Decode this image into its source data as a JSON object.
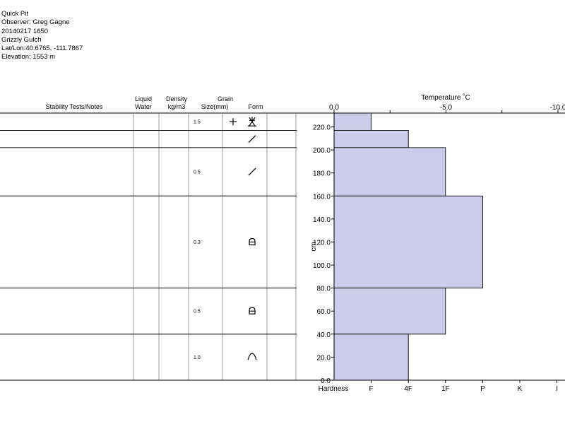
{
  "header": {
    "lines": [
      "Quick Pit",
      "Observer: Greg Gagne",
      "20140217 1650",
      "Grizzly Gulch",
      "Lat/Lon:40.6765, -111.7867",
      "Elevation: 1553 m"
    ]
  },
  "table": {
    "col_stability": "Stability Tests/Notes",
    "col_liquid_1": "Liquid",
    "col_liquid_2": "Water",
    "col_density_1": "Density",
    "col_density_2": "kg/m3",
    "col_grain_1": "Grain",
    "col_grain_2": "Size(mm)",
    "col_form": "Form",
    "layers": [
      {
        "top": 232,
        "bottom": 217,
        "grain_size": "1.5",
        "form": [
          "plus",
          "surface-hoar"
        ]
      },
      {
        "top": 217,
        "bottom": 202,
        "grain_size": "",
        "form": [
          "slash"
        ]
      },
      {
        "top": 202,
        "bottom": 160,
        "grain_size": "0.5",
        "form": [
          "slash"
        ]
      },
      {
        "top": 160,
        "bottom": 80,
        "grain_size": "0.3",
        "form": [
          "facet"
        ]
      },
      {
        "top": 80,
        "bottom": 40,
        "grain_size": "0.5",
        "form": [
          "facet"
        ]
      },
      {
        "top": 40,
        "bottom": 0,
        "grain_size": "1.0",
        "form": [
          "depth-hoar"
        ]
      }
    ]
  },
  "chart_data": {
    "type": "bar",
    "title": "Temperature ˚C",
    "ylabel": "cm",
    "xlabel": "Hardness",
    "ylim": [
      0,
      232
    ],
    "yticks": [
      0,
      20,
      40,
      60,
      80,
      100,
      120,
      140,
      160,
      180,
      200,
      220
    ],
    "ytick_labels": [
      "0.0",
      "20.0",
      "40.0",
      "60.0",
      "80.0",
      "100.0",
      "120.0",
      "140.0",
      "160.0",
      "180.0",
      "200.0",
      "220.0"
    ],
    "temp_ticks": [
      0,
      -5,
      -10
    ],
    "temp_tick_labels": [
      "0.0",
      "-5.0",
      "-10.0"
    ],
    "hardness_scale": [
      "F",
      "4F",
      "1F",
      "P",
      "K",
      "I"
    ],
    "layers": [
      {
        "top": 232,
        "bottom": 217,
        "hardness": "F"
      },
      {
        "top": 217,
        "bottom": 202,
        "hardness": "4F"
      },
      {
        "top": 202,
        "bottom": 160,
        "hardness": "1F"
      },
      {
        "top": 160,
        "bottom": 80,
        "hardness": "P"
      },
      {
        "top": 80,
        "bottom": 40,
        "hardness": "1F"
      },
      {
        "top": 40,
        "bottom": 0,
        "hardness": "4F"
      }
    ],
    "bar_color": "#ccccea",
    "grid": false
  }
}
